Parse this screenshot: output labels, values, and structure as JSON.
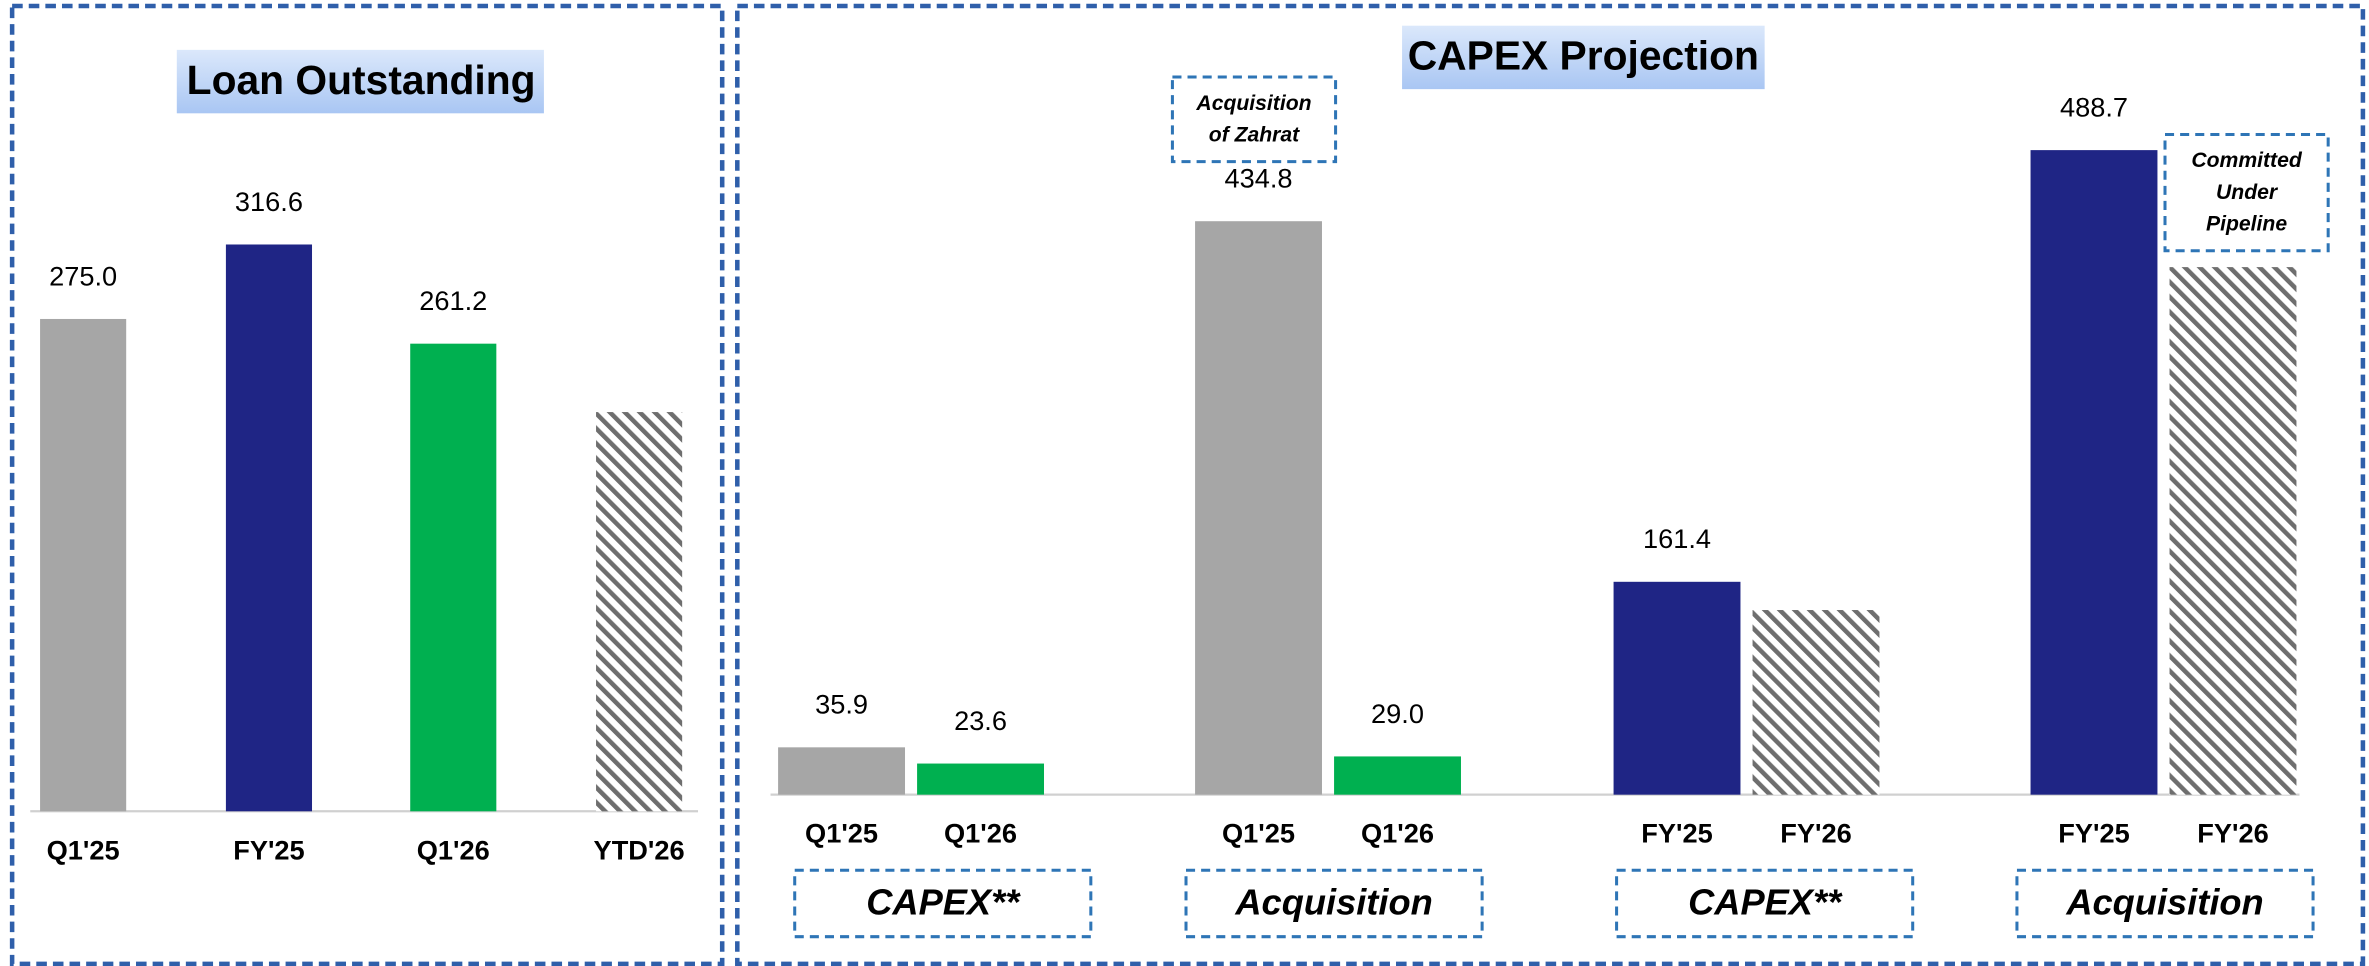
{
  "chart_data": [
    {
      "type": "bar",
      "title": "Loan Outstanding",
      "categories": [
        "Q1'25",
        "FY'25",
        "Q1'26",
        "YTD'26"
      ],
      "values": [
        275,
        316.6,
        261.2,
        223
      ],
      "value_labels": [
        "275.0",
        "316.6",
        "261.2",
        null
      ],
      "colors": [
        "#a6a6a6",
        "#1f2585",
        "#00b050",
        "hatch"
      ],
      "ylim": [
        0,
        400
      ]
    },
    {
      "type": "grouped_bar",
      "title": "CAPEX Projection",
      "groups": [
        {
          "label": "CAPEX**",
          "categories": [
            "Q1'25",
            "Q1'26"
          ],
          "values": [
            35.9,
            23.6
          ],
          "value_labels": [
            "35.9",
            "23.6"
          ],
          "colors": [
            "#a6a6a6",
            "#00b050"
          ]
        },
        {
          "label": "Acquisition",
          "categories": [
            "Q1'25",
            "Q1'26"
          ],
          "values": [
            434.8,
            29.0
          ],
          "value_labels": [
            "434.8",
            "29.0"
          ],
          "colors": [
            "#a6a6a6",
            "#00b050"
          ],
          "annotation": [
            "Acquisition",
            "of Zahrat"
          ]
        },
        {
          "label": "CAPEX**",
          "categories": [
            "FY'25",
            "FY'26"
          ],
          "values": [
            161.4,
            140
          ],
          "value_labels": [
            "161.4",
            null
          ],
          "colors": [
            "#1f2585",
            "hatch"
          ]
        },
        {
          "label": "Acquisition",
          "categories": [
            "FY'25",
            "FY'26"
          ],
          "values": [
            488.7,
            400
          ],
          "value_labels": [
            "488.7",
            null
          ],
          "colors": [
            "#1f2585",
            "hatch"
          ],
          "annotation": [
            "Committed",
            "Under",
            "Pipeline"
          ]
        }
      ],
      "ylim": [
        0,
        500
      ]
    }
  ]
}
